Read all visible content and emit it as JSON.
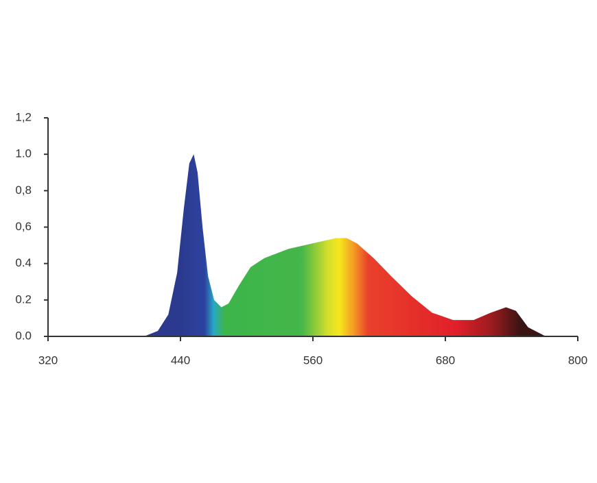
{
  "chart_data": {
    "type": "area",
    "x": [
      407,
      419.5,
      429,
      437,
      443,
      448,
      452,
      455.5,
      460,
      465,
      470.5,
      477,
      483.5,
      493,
      503.5,
      516,
      537.7,
      559.4,
      581,
      590.5,
      600,
      615,
      631,
      649.6,
      668,
      687,
      705.6,
      721,
      735,
      744,
      755,
      771
    ],
    "values": [
      0,
      0.03,
      0.12,
      0.35,
      0.7,
      0.95,
      1.0,
      0.9,
      0.6,
      0.33,
      0.2,
      0.16,
      0.18,
      0.28,
      0.38,
      0.43,
      0.48,
      0.51,
      0.54,
      0.54,
      0.51,
      0.43,
      0.33,
      0.22,
      0.13,
      0.09,
      0.09,
      0.13,
      0.16,
      0.14,
      0.05,
      0
    ],
    "xlim": [
      320,
      800
    ],
    "xticks": [
      320,
      440,
      560,
      680,
      800
    ],
    "ylim": [
      0,
      1.2
    ],
    "yticks": [
      {
        "value": 0,
        "label": "0.0"
      },
      {
        "value": 0.2,
        "label": "0.2"
      },
      {
        "value": 0.4,
        "label": "0.4"
      },
      {
        "value": 0.6,
        "label": "0,6"
      },
      {
        "value": 0.8,
        "label": "0,8"
      },
      {
        "value": 1.0,
        "label": "1.0"
      },
      {
        "value": 1.2,
        "label": "1,2"
      }
    ],
    "grid": false,
    "color_stops": [
      {
        "x": 440,
        "color": "#2b3a8f"
      },
      {
        "x": 462,
        "color": "#2c42a0"
      },
      {
        "x": 470,
        "color": "#27a8c6"
      },
      {
        "x": 480,
        "color": "#3cb54a"
      },
      {
        "x": 550,
        "color": "#45b649"
      },
      {
        "x": 574,
        "color": "#d6df2b"
      },
      {
        "x": 584,
        "color": "#f6e61e"
      },
      {
        "x": 596,
        "color": "#f4a024"
      },
      {
        "x": 610,
        "color": "#e9412b"
      },
      {
        "x": 690,
        "color": "#e11f2a"
      },
      {
        "x": 722,
        "color": "#9b1b1e"
      },
      {
        "x": 748,
        "color": "#3a1414"
      }
    ]
  }
}
